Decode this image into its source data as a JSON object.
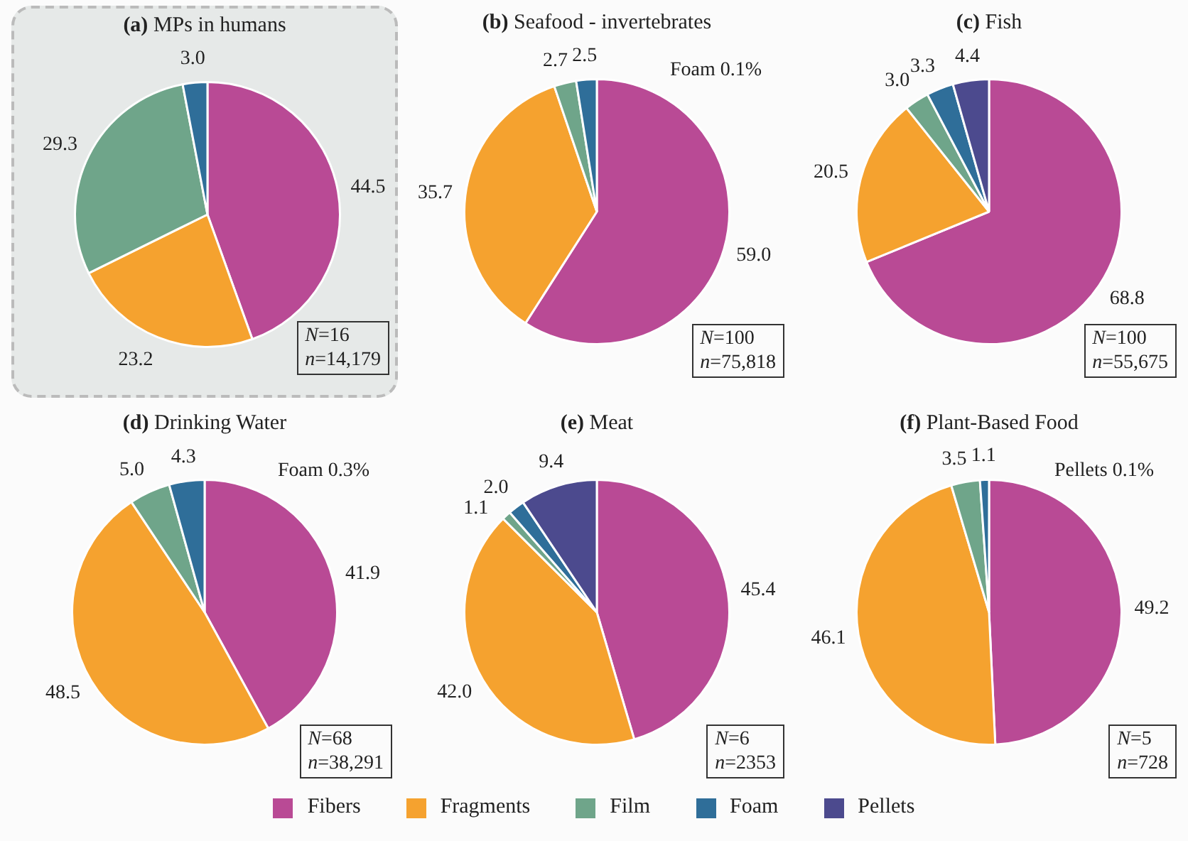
{
  "chart_data": [
    {
      "type": "pie",
      "title": "(a) MPs in humans",
      "categories": [
        null,
        null,
        null,
        null
      ],
      "values": [
        44.5,
        23.2,
        29.3,
        3.0
      ],
      "value_labels": [
        "44.5",
        "23.2",
        "29.3",
        "3.0"
      ],
      "colors": [
        "#b94a95",
        "#f5a22f",
        "#6fa58a",
        "#2f6e99"
      ],
      "annotations": [
        "N=16",
        "n=14,179"
      ]
    },
    {
      "type": "pie",
      "title": "(b) Seafood - invertebrates",
      "categories": [
        null,
        null,
        null,
        null
      ],
      "values": [
        59.0,
        35.7,
        2.7,
        2.5
      ],
      "value_labels": [
        "59.0",
        "35.7",
        "2.7",
        "2.5"
      ],
      "colors": [
        "#b94a95",
        "#f5a22f",
        "#6fa58a",
        "#2f6e99"
      ],
      "annotations": [
        "Foam 0.1%",
        "N=100",
        "n=75,818"
      ]
    },
    {
      "type": "pie",
      "title": "(c) Fish",
      "categories": [
        "Fibers",
        "Fragments",
        "Film",
        "Foam",
        "Pellets"
      ],
      "values": [
        68.8,
        20.5,
        3.0,
        3.3,
        4.4
      ],
      "value_labels": [
        "68.8",
        "20.5",
        "3.0",
        "3.3",
        "4.4"
      ],
      "colors": [
        "#b94a95",
        "#f5a22f",
        "#6fa58a",
        "#2f6e99",
        "#4c4a8e"
      ],
      "legend": "bottom",
      "annotations": [
        "N=100",
        "n=55,675"
      ]
    },
    {
      "type": "pie",
      "title": "(d) Drinking Water",
      "categories": [
        null,
        null,
        null,
        null
      ],
      "values": [
        41.9,
        48.5,
        5.0,
        4.3
      ],
      "value_labels": [
        "41.9",
        "48.5",
        "5.0",
        "4.3"
      ],
      "colors": [
        "#b94a95",
        "#f5a22f",
        "#6fa58a",
        "#2f6e99"
      ],
      "annotations": [
        "Foam 0.3%",
        "N=68",
        "n=38,291"
      ]
    },
    {
      "type": "pie",
      "title": "(e) Meat",
      "categories": [
        null,
        null,
        null,
        null,
        null
      ],
      "values": [
        45.4,
        42.0,
        1.1,
        2.0,
        9.4
      ],
      "value_labels": [
        "45.4",
        "42.0",
        "1.1",
        "2.0",
        "9.4"
      ],
      "colors": [
        "#b94a95",
        "#f5a22f",
        "#6fa58a",
        "#2f6e99",
        "#4c4a8e"
      ],
      "annotations": [
        "N=6",
        "n=2353"
      ]
    },
    {
      "type": "pie",
      "title": "(f) Plant-Based Food",
      "categories": [
        null,
        null,
        null,
        null
      ],
      "values": [
        49.2,
        46.1,
        3.5,
        1.1
      ],
      "value_labels": [
        "49.2",
        "46.1",
        "3.5",
        "1.1"
      ],
      "colors": [
        "#b94a95",
        "#f5a22f",
        "#6fa58a",
        "#2f6e99"
      ],
      "annotations": [
        "Pellets 0.1%",
        "N=5",
        "n=728"
      ]
    }
  ]
}
